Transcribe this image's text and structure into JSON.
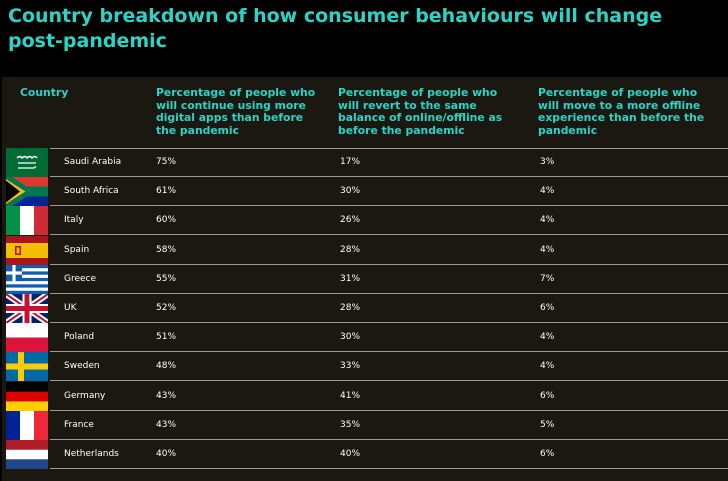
{
  "title": "Country breakdown of how consumer behaviours will change post-pandemic",
  "colors": {
    "accent": "#2ad4c6",
    "background": "#1b1812",
    "text": "#ffffff"
  },
  "header": {
    "country": "Country",
    "col1": "Percentage of people who will continue using more digital apps than before the pandemic",
    "col2": "Percentage of people who will revert to the same balance of online/offline as before the pandemic",
    "col3": "Percentage of people who will move to a more offline experience than before the pandemic"
  },
  "chart_data": {
    "type": "table",
    "title": "Country breakdown of how consumer behaviours will change post-pandemic",
    "columns": [
      "Country",
      "Percentage of people who will continue using more digital apps than before the pandemic",
      "Percentage of people who will revert to the same balance of online/offline as before the pandemic",
      "Percentage of people who will move to a more offline experience than before the pandemic"
    ],
    "rows": [
      {
        "flag": "saudi-arabia-flag",
        "country": "Saudi Arabia",
        "v1": "75%",
        "v2": "17%",
        "v3": "3%"
      },
      {
        "flag": "south-africa-flag",
        "country": "South Africa",
        "v1": "61%",
        "v2": "30%",
        "v3": "4%"
      },
      {
        "flag": "italy-flag",
        "country": "Italy",
        "v1": "60%",
        "v2": "26%",
        "v3": "4%"
      },
      {
        "flag": "spain-flag",
        "country": "Spain",
        "v1": "58%",
        "v2": "28%",
        "v3": "4%"
      },
      {
        "flag": "greece-flag",
        "country": "Greece",
        "v1": "55%",
        "v2": "31%",
        "v3": "7%"
      },
      {
        "flag": "uk-flag",
        "country": "UK",
        "v1": "52%",
        "v2": "28%",
        "v3": "6%"
      },
      {
        "flag": "poland-flag",
        "country": "Poland",
        "v1": "51%",
        "v2": "30%",
        "v3": "4%"
      },
      {
        "flag": "sweden-flag",
        "country": "Sweden",
        "v1": "48%",
        "v2": "33%",
        "v3": "4%"
      },
      {
        "flag": "germany-flag",
        "country": "Germany",
        "v1": "43%",
        "v2": "41%",
        "v3": "6%"
      },
      {
        "flag": "france-flag",
        "country": "France",
        "v1": "43%",
        "v2": "35%",
        "v3": "5%"
      },
      {
        "flag": "netherlands-flag",
        "country": "Netherlands",
        "v1": "40%",
        "v2": "40%",
        "v3": "6%"
      }
    ]
  }
}
